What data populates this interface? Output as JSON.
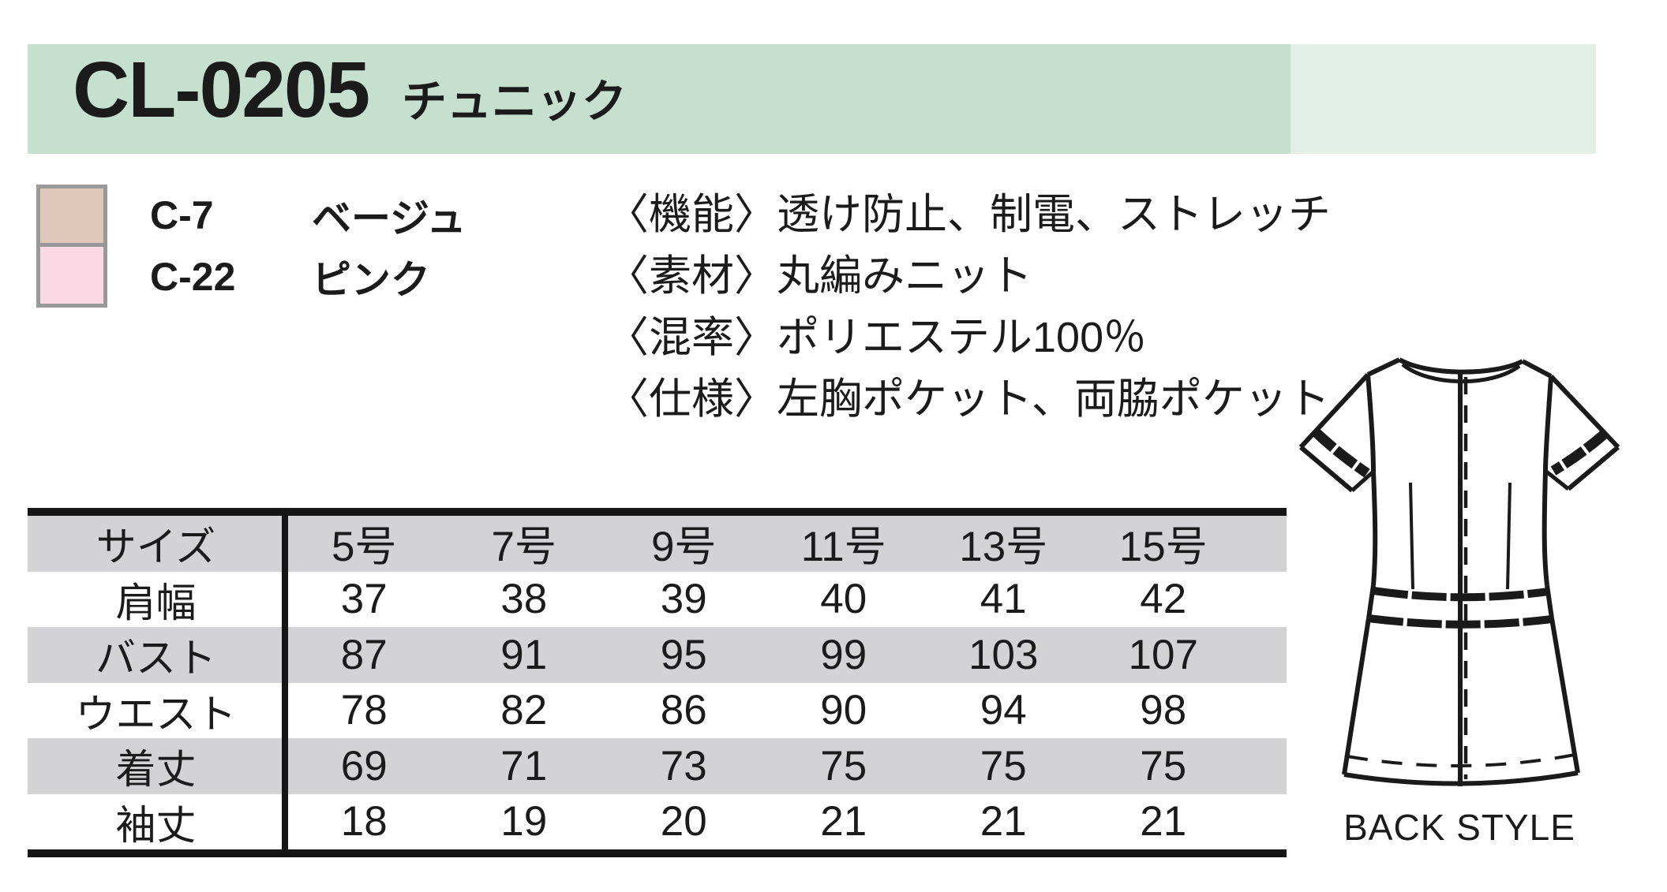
{
  "header": {
    "product_code": "CL-0205",
    "product_name": "チュニック"
  },
  "color_options": [
    {
      "code": "C-7",
      "name": "ベージュ",
      "swatch": "#dfc8ba"
    },
    {
      "code": "C-22",
      "name": "ピンク",
      "swatch": "#fad9e5"
    }
  ],
  "specs": [
    "〈機能〉透け防止、制電、ストレッチ",
    "〈素材〉丸編みニット",
    "〈混率〉ポリエステル100％",
    "〈仕様〉左胸ポケット、両脇ポケット"
  ],
  "size_table": {
    "header": [
      "サイズ",
      "5号",
      "7号",
      "9号",
      "11号",
      "13号",
      "15号"
    ],
    "rows": [
      {
        "label": "肩幅",
        "values": [
          "37",
          "38",
          "39",
          "40",
          "41",
          "42"
        ]
      },
      {
        "label": "バスト",
        "values": [
          "87",
          "91",
          "95",
          "99",
          "103",
          "107"
        ]
      },
      {
        "label": "ウエスト",
        "values": [
          "78",
          "82",
          "86",
          "90",
          "94",
          "98"
        ]
      },
      {
        "label": "着丈",
        "values": [
          "69",
          "71",
          "73",
          "75",
          "75",
          "75"
        ]
      },
      {
        "label": "袖丈",
        "values": [
          "18",
          "19",
          "20",
          "21",
          "21",
          "21"
        ]
      }
    ]
  },
  "illustration": {
    "caption": "BACK STYLE"
  },
  "theme": {
    "band_green": "#c6e0cf",
    "band_green_light": "#e1efe7",
    "row_gray": "#d3d3d5",
    "ink": "#1b1b1b",
    "swatch_border": "#999999"
  }
}
